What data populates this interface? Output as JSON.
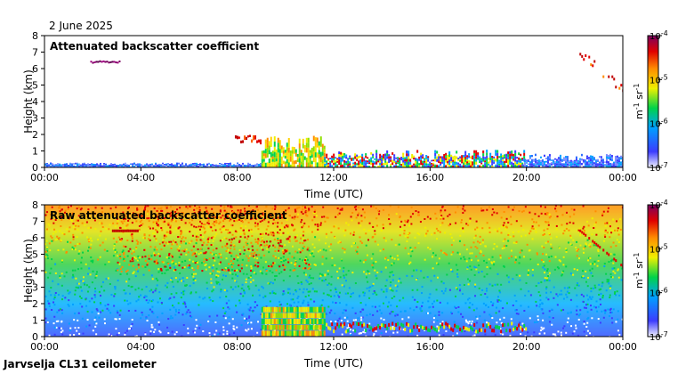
{
  "date_label": "2 June 2025",
  "footer_label": "Jarvselja CL31 ceilometer",
  "chart_data": [
    {
      "type": "heatmap",
      "title": "Attenuated backscatter coefficient",
      "xlabel": "Time (UTC)",
      "ylabel": "Height (km)",
      "xlim": [
        0,
        24
      ],
      "ylim": [
        0,
        8
      ],
      "x_ticks": [
        "00:00",
        "04:00",
        "08:00",
        "12:00",
        "16:00",
        "20:00",
        "00:00"
      ],
      "y_ticks": [
        "0",
        "1",
        "2",
        "3",
        "4",
        "5",
        "6",
        "7",
        "8"
      ],
      "colorbar": {
        "scale": "log",
        "range": [
          1e-07,
          0.0001
        ],
        "unit": "m-1 sr-1",
        "tick_labels": [
          "10-4",
          "10-5",
          "10-6",
          "10-7"
        ]
      },
      "features": [
        {
          "x_start": 0,
          "x_end": 9.0,
          "y_top": 0.25,
          "level": "low-noise-blue"
        },
        {
          "x_start": 1.9,
          "x_end": 3.1,
          "y_top": 6.5,
          "level": "cloud-purple"
        },
        {
          "x_start": 7.9,
          "x_end": 9.0,
          "y_top": 2.0,
          "level": "elevated-red"
        },
        {
          "x_start": 9.0,
          "x_end": 11.6,
          "y_top": 1.6,
          "level": "boundary-layer-high"
        },
        {
          "x_start": 11.6,
          "x_end": 19.9,
          "y_top": 0.9,
          "level": "boundary-layer-mid"
        },
        {
          "x_start": 19.9,
          "x_end": 24.0,
          "y_top": 0.7,
          "level": "low-noise-blue"
        },
        {
          "x_start": 22.2,
          "x_end": 24.0,
          "y_top": 7.0,
          "level": "cloud-red"
        }
      ]
    },
    {
      "type": "heatmap",
      "title": "Raw attenuated backscatter coefficient",
      "xlabel": "Time (UTC)",
      "ylabel": "Height (km)",
      "xlim": [
        0,
        24
      ],
      "ylim": [
        0,
        8
      ],
      "x_ticks": [
        "00:00",
        "04:00",
        "08:00",
        "12:00",
        "16:00",
        "20:00",
        "00:00"
      ],
      "y_ticks": [
        "0",
        "1",
        "2",
        "3",
        "4",
        "5",
        "6",
        "7",
        "8"
      ],
      "colorbar": {
        "scale": "log",
        "range": [
          1e-07,
          0.0001
        ],
        "unit": "m-1 sr-1",
        "tick_labels": [
          "10-4",
          "10-5",
          "10-6",
          "10-7"
        ]
      }
    }
  ]
}
